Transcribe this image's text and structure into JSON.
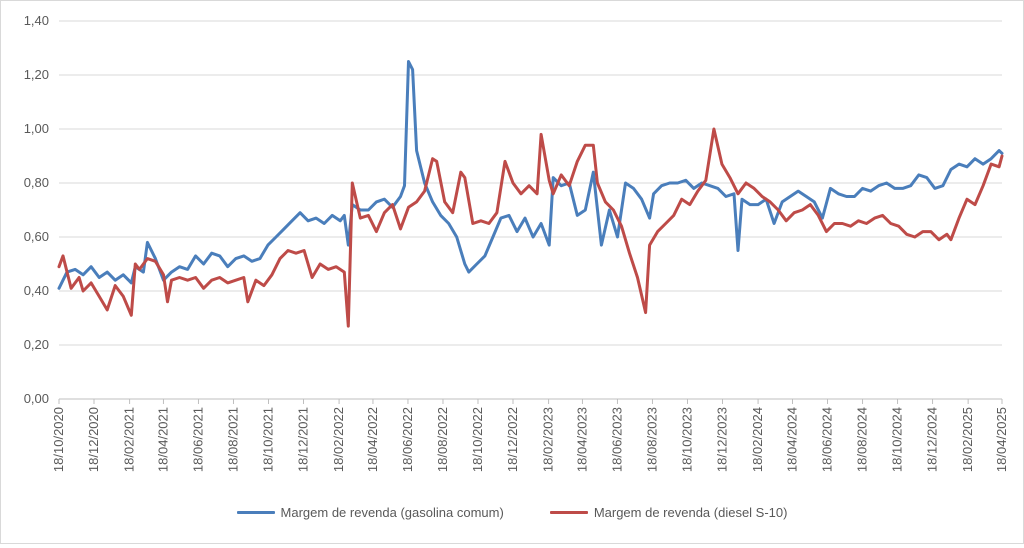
{
  "chart_data": {
    "type": "line",
    "title": "",
    "xlabel": "",
    "ylabel": "",
    "ylim": [
      0,
      1.4
    ],
    "y_ticks": [
      "0,00",
      "0,20",
      "0,40",
      "0,60",
      "0,80",
      "1,00",
      "1,20",
      "1,40"
    ],
    "x_tick_labels": [
      "18/10/2020",
      "18/12/2020",
      "18/02/2021",
      "18/04/2021",
      "18/06/2021",
      "18/08/2021",
      "18/10/2021",
      "18/12/2021",
      "18/02/2022",
      "18/04/2022",
      "18/06/2022",
      "18/08/2022",
      "18/10/2022",
      "18/12/2022",
      "18/02/2023",
      "18/04/2023",
      "18/06/2023",
      "18/08/2023",
      "18/10/2023",
      "18/12/2023",
      "18/02/2024",
      "18/04/2024",
      "18/06/2024",
      "18/08/2024",
      "18/10/2024",
      "18/12/2024",
      "18/02/2025",
      "18/04/2025"
    ],
    "x_range": [
      "18/10/2020",
      "18/04/2025"
    ],
    "grid": "horizontal",
    "legend_position": "bottom",
    "series": [
      {
        "name": "Margem de revenda (gasolina comum)",
        "color": "#4a7ebb",
        "points": [
          [
            "18/10/2020",
            0.41
          ],
          [
            "01/11/2020",
            0.47
          ],
          [
            "15/11/2020",
            0.48
          ],
          [
            "29/11/2020",
            0.46
          ],
          [
            "13/12/2020",
            0.49
          ],
          [
            "27/12/2020",
            0.45
          ],
          [
            "10/01/2021",
            0.47
          ],
          [
            "24/01/2021",
            0.44
          ],
          [
            "07/02/2021",
            0.46
          ],
          [
            "21/02/2021",
            0.43
          ],
          [
            "28/02/2021",
            0.49
          ],
          [
            "14/03/2021",
            0.47
          ],
          [
            "21/03/2021",
            0.58
          ],
          [
            "04/04/2021",
            0.52
          ],
          [
            "18/04/2021",
            0.44
          ],
          [
            "02/05/2021",
            0.47
          ],
          [
            "16/05/2021",
            0.49
          ],
          [
            "30/05/2021",
            0.48
          ],
          [
            "13/06/2021",
            0.53
          ],
          [
            "27/06/2021",
            0.5
          ],
          [
            "11/07/2021",
            0.54
          ],
          [
            "25/07/2021",
            0.53
          ],
          [
            "08/08/2021",
            0.49
          ],
          [
            "22/08/2021",
            0.52
          ],
          [
            "05/09/2021",
            0.53
          ],
          [
            "19/09/2021",
            0.51
          ],
          [
            "03/10/2021",
            0.52
          ],
          [
            "17/10/2021",
            0.57
          ],
          [
            "31/10/2021",
            0.6
          ],
          [
            "14/11/2021",
            0.63
          ],
          [
            "28/11/2021",
            0.66
          ],
          [
            "12/12/2021",
            0.69
          ],
          [
            "26/12/2021",
            0.66
          ],
          [
            "09/01/2022",
            0.67
          ],
          [
            "23/01/2022",
            0.65
          ],
          [
            "06/02/2022",
            0.68
          ],
          [
            "20/02/2022",
            0.66
          ],
          [
            "27/02/2022",
            0.68
          ],
          [
            "06/03/2022",
            0.57
          ],
          [
            "13/03/2022",
            0.72
          ],
          [
            "27/03/2022",
            0.7
          ],
          [
            "10/04/2022",
            0.7
          ],
          [
            "24/04/2022",
            0.73
          ],
          [
            "08/05/2022",
            0.74
          ],
          [
            "22/05/2022",
            0.71
          ],
          [
            "05/06/2022",
            0.75
          ],
          [
            "12/06/2022",
            0.79
          ],
          [
            "19/06/2022",
            1.25
          ],
          [
            "26/06/2022",
            1.22
          ],
          [
            "03/07/2022",
            0.92
          ],
          [
            "17/07/2022",
            0.8
          ],
          [
            "31/07/2022",
            0.73
          ],
          [
            "14/08/2022",
            0.68
          ],
          [
            "28/08/2022",
            0.65
          ],
          [
            "11/09/2022",
            0.6
          ],
          [
            "25/09/2022",
            0.5
          ],
          [
            "02/10/2022",
            0.47
          ],
          [
            "16/10/2022",
            0.5
          ],
          [
            "30/10/2022",
            0.53
          ],
          [
            "13/11/2022",
            0.6
          ],
          [
            "27/11/2022",
            0.67
          ],
          [
            "11/12/2022",
            0.68
          ],
          [
            "25/12/2022",
            0.62
          ],
          [
            "08/01/2023",
            0.67
          ],
          [
            "22/01/2023",
            0.6
          ],
          [
            "05/02/2023",
            0.65
          ],
          [
            "19/02/2023",
            0.57
          ],
          [
            "26/02/2023",
            0.82
          ],
          [
            "12/03/2023",
            0.79
          ],
          [
            "26/03/2023",
            0.8
          ],
          [
            "09/04/2023",
            0.68
          ],
          [
            "23/04/2023",
            0.7
          ],
          [
            "07/05/2023",
            0.84
          ],
          [
            "21/05/2023",
            0.57
          ],
          [
            "04/06/2023",
            0.7
          ],
          [
            "18/06/2023",
            0.6
          ],
          [
            "02/07/2023",
            0.8
          ],
          [
            "16/07/2023",
            0.78
          ],
          [
            "30/07/2023",
            0.74
          ],
          [
            "13/08/2023",
            0.67
          ],
          [
            "20/08/2023",
            0.76
          ],
          [
            "03/09/2023",
            0.79
          ],
          [
            "17/09/2023",
            0.8
          ],
          [
            "01/10/2023",
            0.8
          ],
          [
            "15/10/2023",
            0.81
          ],
          [
            "29/10/2023",
            0.78
          ],
          [
            "12/11/2023",
            0.8
          ],
          [
            "26/11/2023",
            0.79
          ],
          [
            "10/12/2023",
            0.78
          ],
          [
            "24/12/2023",
            0.75
          ],
          [
            "07/01/2024",
            0.76
          ],
          [
            "14/01/2024",
            0.55
          ],
          [
            "21/01/2024",
            0.74
          ],
          [
            "04/02/2024",
            0.72
          ],
          [
            "18/02/2024",
            0.72
          ],
          [
            "03/03/2024",
            0.74
          ],
          [
            "17/03/2024",
            0.65
          ],
          [
            "31/03/2024",
            0.73
          ],
          [
            "14/04/2024",
            0.75
          ],
          [
            "28/04/2024",
            0.77
          ],
          [
            "12/05/2024",
            0.75
          ],
          [
            "26/05/2024",
            0.73
          ],
          [
            "09/06/2024",
            0.67
          ],
          [
            "23/06/2024",
            0.78
          ],
          [
            "07/07/2024",
            0.76
          ],
          [
            "21/07/2024",
            0.75
          ],
          [
            "04/08/2024",
            0.75
          ],
          [
            "18/08/2024",
            0.78
          ],
          [
            "01/09/2024",
            0.77
          ],
          [
            "15/09/2024",
            0.79
          ],
          [
            "29/09/2024",
            0.8
          ],
          [
            "13/10/2024",
            0.78
          ],
          [
            "27/10/2024",
            0.78
          ],
          [
            "10/11/2024",
            0.79
          ],
          [
            "24/11/2024",
            0.83
          ],
          [
            "08/12/2024",
            0.82
          ],
          [
            "22/12/2024",
            0.78
          ],
          [
            "05/01/2025",
            0.79
          ],
          [
            "19/01/2025",
            0.85
          ],
          [
            "02/02/2025",
            0.87
          ],
          [
            "16/02/2025",
            0.86
          ],
          [
            "02/03/2025",
            0.89
          ],
          [
            "16/03/2025",
            0.87
          ],
          [
            "30/03/2025",
            0.89
          ],
          [
            "13/04/2025",
            0.92
          ],
          [
            "18/04/2025",
            0.91
          ]
        ]
      },
      {
        "name": "Margem de revenda (diesel S-10)",
        "color": "#be4b48",
        "points": [
          [
            "18/10/2020",
            0.49
          ],
          [
            "25/10/2020",
            0.53
          ],
          [
            "08/11/2020",
            0.41
          ],
          [
            "22/11/2020",
            0.45
          ],
          [
            "29/11/2020",
            0.4
          ],
          [
            "13/12/2020",
            0.43
          ],
          [
            "27/12/2020",
            0.38
          ],
          [
            "10/01/2021",
            0.33
          ],
          [
            "24/01/2021",
            0.42
          ],
          [
            "07/02/2021",
            0.38
          ],
          [
            "21/02/2021",
            0.31
          ],
          [
            "28/02/2021",
            0.5
          ],
          [
            "07/03/2021",
            0.48
          ],
          [
            "21/03/2021",
            0.52
          ],
          [
            "04/04/2021",
            0.51
          ],
          [
            "18/04/2021",
            0.46
          ],
          [
            "25/04/2021",
            0.36
          ],
          [
            "02/05/2021",
            0.44
          ],
          [
            "16/05/2021",
            0.45
          ],
          [
            "30/05/2021",
            0.44
          ],
          [
            "13/06/2021",
            0.45
          ],
          [
            "27/06/2021",
            0.41
          ],
          [
            "11/07/2021",
            0.44
          ],
          [
            "25/07/2021",
            0.45
          ],
          [
            "08/08/2021",
            0.43
          ],
          [
            "22/08/2021",
            0.44
          ],
          [
            "05/09/2021",
            0.45
          ],
          [
            "12/09/2021",
            0.36
          ],
          [
            "26/09/2021",
            0.44
          ],
          [
            "10/10/2021",
            0.42
          ],
          [
            "24/10/2021",
            0.46
          ],
          [
            "07/11/2021",
            0.52
          ],
          [
            "21/11/2021",
            0.55
          ],
          [
            "05/12/2021",
            0.54
          ],
          [
            "19/12/2021",
            0.55
          ],
          [
            "02/01/2022",
            0.45
          ],
          [
            "16/01/2022",
            0.5
          ],
          [
            "30/01/2022",
            0.48
          ],
          [
            "13/02/2022",
            0.49
          ],
          [
            "27/02/2022",
            0.47
          ],
          [
            "06/03/2022",
            0.27
          ],
          [
            "13/03/2022",
            0.8
          ],
          [
            "27/03/2022",
            0.67
          ],
          [
            "10/04/2022",
            0.68
          ],
          [
            "24/04/2022",
            0.62
          ],
          [
            "08/05/2022",
            0.69
          ],
          [
            "22/05/2022",
            0.72
          ],
          [
            "05/06/2022",
            0.63
          ],
          [
            "19/06/2022",
            0.71
          ],
          [
            "03/07/2022",
            0.73
          ],
          [
            "17/07/2022",
            0.77
          ],
          [
            "31/07/2022",
            0.89
          ],
          [
            "07/08/2022",
            0.88
          ],
          [
            "21/08/2022",
            0.73
          ],
          [
            "04/09/2022",
            0.69
          ],
          [
            "18/09/2022",
            0.84
          ],
          [
            "25/09/2022",
            0.82
          ],
          [
            "09/10/2022",
            0.65
          ],
          [
            "23/10/2022",
            0.66
          ],
          [
            "06/11/2022",
            0.65
          ],
          [
            "20/11/2022",
            0.69
          ],
          [
            "04/12/2022",
            0.88
          ],
          [
            "18/12/2022",
            0.8
          ],
          [
            "01/01/2023",
            0.76
          ],
          [
            "15/01/2023",
            0.79
          ],
          [
            "29/01/2023",
            0.76
          ],
          [
            "05/02/2023",
            0.98
          ],
          [
            "19/02/2023",
            0.81
          ],
          [
            "26/02/2023",
            0.76
          ],
          [
            "12/03/2023",
            0.83
          ],
          [
            "26/03/2023",
            0.79
          ],
          [
            "09/04/2023",
            0.88
          ],
          [
            "23/04/2023",
            0.94
          ],
          [
            "07/05/2023",
            0.94
          ],
          [
            "14/05/2023",
            0.8
          ],
          [
            "28/05/2023",
            0.73
          ],
          [
            "11/06/2023",
            0.7
          ],
          [
            "25/06/2023",
            0.64
          ],
          [
            "09/07/2023",
            0.54
          ],
          [
            "23/07/2023",
            0.45
          ],
          [
            "06/08/2023",
            0.32
          ],
          [
            "13/08/2023",
            0.57
          ],
          [
            "27/08/2023",
            0.62
          ],
          [
            "10/09/2023",
            0.65
          ],
          [
            "24/09/2023",
            0.68
          ],
          [
            "08/10/2023",
            0.74
          ],
          [
            "22/10/2023",
            0.72
          ],
          [
            "05/11/2023",
            0.77
          ],
          [
            "19/11/2023",
            0.81
          ],
          [
            "03/12/2023",
            1.0
          ],
          [
            "17/12/2023",
            0.87
          ],
          [
            "31/12/2023",
            0.82
          ],
          [
            "14/01/2024",
            0.76
          ],
          [
            "28/01/2024",
            0.8
          ],
          [
            "11/02/2024",
            0.78
          ],
          [
            "25/02/2024",
            0.75
          ],
          [
            "10/03/2024",
            0.73
          ],
          [
            "24/03/2024",
            0.7
          ],
          [
            "07/04/2024",
            0.66
          ],
          [
            "21/04/2024",
            0.69
          ],
          [
            "05/05/2024",
            0.7
          ],
          [
            "19/05/2024",
            0.72
          ],
          [
            "02/06/2024",
            0.68
          ],
          [
            "16/06/2024",
            0.62
          ],
          [
            "30/06/2024",
            0.65
          ],
          [
            "14/07/2024",
            0.65
          ],
          [
            "28/07/2024",
            0.64
          ],
          [
            "11/08/2024",
            0.66
          ],
          [
            "25/08/2024",
            0.65
          ],
          [
            "08/09/2024",
            0.67
          ],
          [
            "22/09/2024",
            0.68
          ],
          [
            "06/10/2024",
            0.65
          ],
          [
            "20/10/2024",
            0.64
          ],
          [
            "03/11/2024",
            0.61
          ],
          [
            "17/11/2024",
            0.6
          ],
          [
            "01/12/2024",
            0.62
          ],
          [
            "15/12/2024",
            0.62
          ],
          [
            "29/12/2024",
            0.59
          ],
          [
            "12/01/2025",
            0.61
          ],
          [
            "19/01/2025",
            0.59
          ],
          [
            "02/02/2025",
            0.67
          ],
          [
            "16/02/2025",
            0.74
          ],
          [
            "02/03/2025",
            0.72
          ],
          [
            "16/03/2025",
            0.79
          ],
          [
            "30/03/2025",
            0.87
          ],
          [
            "13/04/2025",
            0.86
          ],
          [
            "18/04/2025",
            0.9
          ]
        ]
      }
    ]
  }
}
